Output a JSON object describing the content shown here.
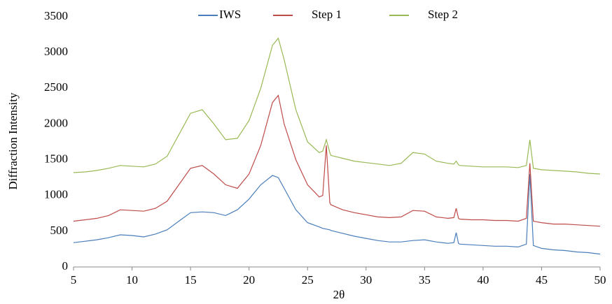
{
  "chart_data": {
    "type": "line",
    "x_label": "2θ",
    "y_label": "Diffraction Intensity",
    "x": [
      5,
      6,
      7,
      8,
      9,
      10,
      11,
      12,
      13,
      14,
      15,
      16,
      17,
      18,
      19,
      20,
      21,
      22,
      22.5,
      23,
      24,
      25,
      26,
      26.3,
      26.6,
      26.9,
      27,
      28,
      29,
      30,
      31,
      32,
      33,
      34,
      35,
      36,
      37,
      37.5,
      37.7,
      37.9,
      38,
      39,
      40,
      41,
      42,
      43,
      43.7,
      44,
      44.3,
      45,
      46,
      47,
      48,
      49,
      50
    ],
    "series": [
      {
        "name": "IWS",
        "color": "#4a7ebb",
        "values": [
          340,
          360,
          380,
          410,
          450,
          440,
          420,
          460,
          520,
          640,
          760,
          770,
          760,
          720,
          800,
          950,
          1150,
          1280,
          1250,
          1100,
          800,
          620,
          560,
          540,
          530,
          520,
          510,
          470,
          430,
          400,
          370,
          350,
          350,
          370,
          380,
          350,
          330,
          340,
          480,
          330,
          320,
          310,
          300,
          290,
          290,
          280,
          320,
          1300,
          300,
          260,
          240,
          230,
          210,
          200,
          180
        ]
      },
      {
        "name": "Step 1",
        "color": "#be4b48",
        "values": [
          640,
          660,
          680,
          720,
          800,
          790,
          780,
          820,
          920,
          1150,
          1380,
          1420,
          1300,
          1150,
          1100,
          1300,
          1700,
          2300,
          2400,
          2000,
          1500,
          1150,
          980,
          1000,
          1700,
          900,
          870,
          800,
          760,
          730,
          700,
          690,
          700,
          790,
          780,
          700,
          680,
          690,
          820,
          680,
          670,
          660,
          660,
          650,
          650,
          640,
          680,
          1450,
          640,
          620,
          600,
          600,
          590,
          580,
          570
        ]
      },
      {
        "name": "Step 2",
        "color": "#98b954",
        "values": [
          1320,
          1330,
          1350,
          1380,
          1420,
          1410,
          1400,
          1440,
          1550,
          1850,
          2150,
          2200,
          2000,
          1780,
          1800,
          2050,
          2500,
          3100,
          3200,
          2900,
          2200,
          1750,
          1600,
          1620,
          1780,
          1600,
          1560,
          1520,
          1480,
          1460,
          1440,
          1420,
          1450,
          1600,
          1580,
          1480,
          1450,
          1440,
          1480,
          1430,
          1420,
          1410,
          1400,
          1400,
          1400,
          1390,
          1420,
          1780,
          1380,
          1360,
          1350,
          1340,
          1330,
          1310,
          1300
        ]
      }
    ],
    "xlim": [
      5,
      50
    ],
    "xticks": [
      5,
      10,
      15,
      20,
      25,
      30,
      35,
      40,
      45,
      50
    ],
    "ylim": [
      0,
      3500
    ],
    "yticks": [
      0,
      500,
      1000,
      1500,
      2000,
      2500,
      3000,
      3500
    ],
    "legend": "top",
    "grid": false
  }
}
